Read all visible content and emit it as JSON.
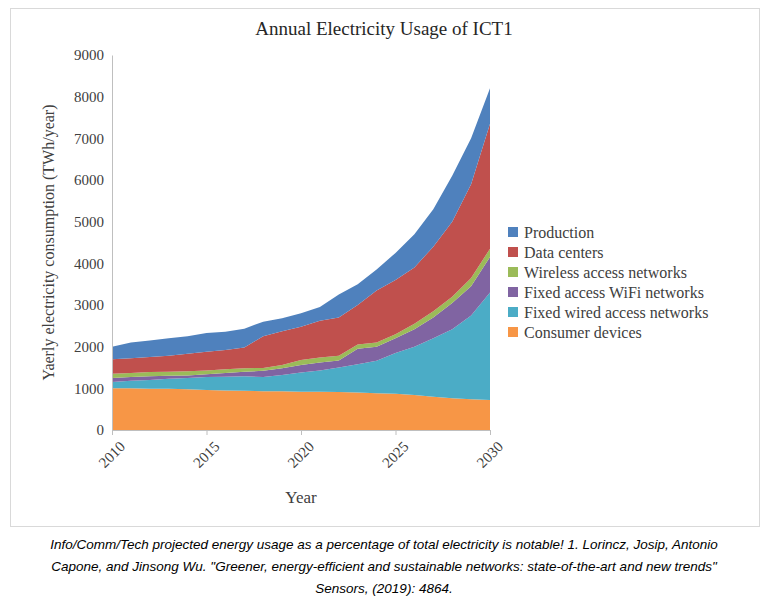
{
  "chart_data": {
    "type": "area",
    "stacked": true,
    "title": "Annual Electricity Usage of ICT1",
    "x_label": "Year",
    "y_label": "Yaerly electricity consumption (TWh/year)",
    "caption": [
      "Info/Comm/Tech projected energy usage as a percentage of total electricity is notable! 1. Lorincz, Josip, Antonio",
      "Capone, and Jinsong Wu. \"Greener, energy-efficient and sustainable networks: state-of-the-art and new trends\"",
      "Sensors, (2019): 4864."
    ],
    "x": [
      2010,
      2011,
      2012,
      2013,
      2014,
      2015,
      2016,
      2017,
      2018,
      2019,
      2020,
      2021,
      2022,
      2023,
      2024,
      2025,
      2026,
      2027,
      2028,
      2029,
      2030
    ],
    "xlim": [
      2010,
      2030
    ],
    "xticks": [
      2010,
      2015,
      2020,
      2025,
      2030
    ],
    "ylim": [
      0,
      9000
    ],
    "yticks": [
      0,
      1000,
      2000,
      3000,
      4000,
      5000,
      6000,
      7000,
      8000,
      9000
    ],
    "grid": false,
    "legend": "right",
    "series": [
      {
        "name": "Consumer devices",
        "color": "#f79646",
        "values": [
          1000,
          1000,
          990,
          990,
          980,
          960,
          950,
          940,
          930,
          930,
          920,
          920,
          910,
          900,
          880,
          870,
          840,
          800,
          760,
          740,
          720
        ]
      },
      {
        "name": "Fixed wired access networks",
        "color": "#4bacc6",
        "values": [
          150,
          180,
          210,
          240,
          270,
          310,
          330,
          350,
          340,
          390,
          460,
          510,
          590,
          680,
          780,
          980,
          1160,
          1400,
          1660,
          2010,
          2580
        ]
      },
      {
        "name": "Fixed access WiFi networks",
        "color": "#8064a2",
        "values": [
          100,
          90,
          90,
          70,
          60,
          70,
          90,
          110,
          150,
          160,
          180,
          190,
          170,
          370,
          340,
          350,
          420,
          500,
          630,
          700,
          850
        ]
      },
      {
        "name": "Wireless access networks",
        "color": "#9bbb59",
        "values": [
          100,
          100,
          100,
          100,
          100,
          90,
          90,
          80,
          70,
          80,
          120,
          120,
          110,
          100,
          100,
          100,
          130,
          150,
          150,
          200,
          200
        ]
      },
      {
        "name": "Data centers",
        "color": "#c0504d",
        "values": [
          350,
          350,
          360,
          380,
          420,
          450,
          460,
          500,
          760,
          810,
          800,
          880,
          920,
          950,
          1250,
          1300,
          1350,
          1550,
          1800,
          2250,
          3000
        ]
      },
      {
        "name": "Production",
        "color": "#4f81bd",
        "values": [
          300,
          380,
          400,
          420,
          420,
          450,
          440,
          450,
          350,
          310,
          320,
          330,
          550,
          500,
          500,
          650,
          800,
          900,
          1100,
          1100,
          850
        ]
      }
    ]
  }
}
